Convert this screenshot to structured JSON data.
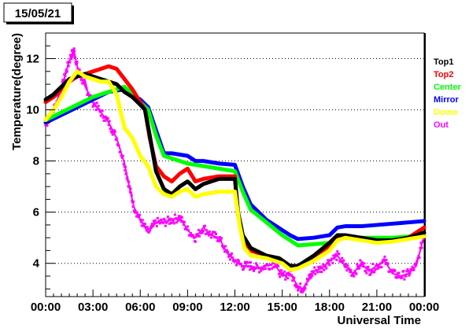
{
  "chart_data": {
    "type": "line",
    "date_label": "15/05/21",
    "ylabel": "Temperature(degree)",
    "xlabel": "Universal Time",
    "xlim": [
      0,
      24
    ],
    "ylim": [
      2.7,
      13.0
    ],
    "x_ticks": [
      0,
      3,
      6,
      9,
      12,
      15,
      18,
      21,
      24
    ],
    "x_tick_labels": [
      "00:00",
      "03:00",
      "06:00",
      "09:00",
      "12:00",
      "15:00",
      "18:00",
      "21:00",
      "00:00"
    ],
    "y_ticks": [
      4,
      6,
      8,
      10,
      12
    ],
    "y_tick_labels": [
      "4",
      "6",
      "8",
      "10",
      "12"
    ],
    "grid": "horizontal-dotted",
    "legend_position": "right",
    "series": [
      {
        "name": "Top1",
        "color": "#000000",
        "x": [
          0,
          0.5,
          1,
          1.5,
          2,
          2.5,
          3,
          3.5,
          4,
          4.5,
          5,
          5.5,
          6,
          6.3,
          6.6,
          7,
          7.5,
          8,
          8.5,
          9,
          9.5,
          10,
          11,
          12,
          12.2,
          12.5,
          13,
          14,
          14.8,
          15.5,
          16,
          17,
          18,
          18.5,
          19,
          20,
          21,
          22,
          23,
          24
        ],
        "y": [
          10.4,
          10.6,
          10.9,
          11.2,
          11.3,
          11.4,
          11.3,
          11.2,
          11.1,
          11.0,
          10.7,
          10.5,
          10.2,
          10.0,
          9.0,
          7.6,
          6.9,
          6.7,
          7.0,
          7.2,
          6.9,
          7.1,
          7.3,
          7.3,
          6.0,
          5.1,
          4.6,
          4.3,
          4.2,
          3.9,
          3.9,
          4.3,
          4.8,
          5.1,
          5.1,
          5.0,
          4.9,
          4.9,
          5.0,
          5.2
        ]
      },
      {
        "name": "Top2",
        "color": "#ff0000",
        "x": [
          0,
          0.5,
          1,
          1.5,
          2,
          2.5,
          3,
          3.5,
          4,
          4.5,
          5,
          5.5,
          6,
          6.3,
          6.6,
          7,
          7.5,
          8,
          8.5,
          9,
          9.5,
          10,
          11,
          12,
          12.2,
          12.5,
          13,
          14,
          14.8,
          15.5,
          16,
          17,
          18,
          18.5,
          19,
          20,
          21,
          22,
          23,
          24
        ],
        "y": [
          10.3,
          10.5,
          10.8,
          11.1,
          11.3,
          11.4,
          11.5,
          11.6,
          11.7,
          11.6,
          11.2,
          10.8,
          10.3,
          10.0,
          8.9,
          7.8,
          7.4,
          7.2,
          7.5,
          7.7,
          7.2,
          7.3,
          7.4,
          7.4,
          5.9,
          5.0,
          4.5,
          4.3,
          4.1,
          3.9,
          3.9,
          4.2,
          4.7,
          5.0,
          5.0,
          5.0,
          4.9,
          4.9,
          5.0,
          5.4
        ]
      },
      {
        "name": "Center",
        "color": "#00ff00",
        "x": [
          0,
          1,
          2,
          3,
          4,
          5,
          6,
          6.5,
          7,
          7.5,
          8,
          9,
          10,
          11,
          12,
          12.5,
          13,
          14,
          15,
          15.5,
          16,
          17,
          18,
          18.5,
          19,
          20,
          21,
          22,
          23,
          24
        ],
        "y": [
          9.6,
          9.9,
          10.2,
          10.5,
          10.7,
          10.9,
          10.3,
          10.0,
          9.0,
          8.2,
          8.1,
          7.9,
          7.8,
          7.7,
          7.6,
          6.8,
          6.1,
          5.6,
          5.1,
          4.9,
          4.7,
          4.75,
          4.8,
          5.05,
          5.05,
          5.0,
          5.0,
          5.0,
          5.05,
          5.1
        ]
      },
      {
        "name": "Mirror",
        "color": "#0000ff",
        "x": [
          0,
          1,
          2,
          3,
          4,
          5,
          6,
          6.5,
          7,
          7.5,
          8,
          9,
          9.5,
          10,
          11,
          12,
          12.5,
          13,
          14,
          15,
          15.5,
          16,
          17,
          18,
          18.5,
          19,
          20,
          21,
          22,
          23,
          24
        ],
        "y": [
          9.5,
          9.8,
          10.1,
          10.4,
          10.7,
          10.8,
          10.4,
          10.1,
          9.2,
          8.3,
          8.3,
          8.2,
          8.0,
          8.0,
          7.9,
          7.85,
          7.0,
          6.3,
          5.7,
          5.3,
          5.1,
          4.95,
          5.0,
          5.1,
          5.4,
          5.45,
          5.45,
          5.5,
          5.55,
          5.6,
          5.65
        ]
      },
      {
        "name": "Dome",
        "color": "#ffff00",
        "x": [
          0,
          0.5,
          1,
          1.5,
          2,
          2.5,
          3,
          3.5,
          4,
          4.5,
          5,
          5.5,
          6,
          6.5,
          7,
          7.5,
          8,
          8.5,
          9,
          9.5,
          10,
          11,
          12,
          12.3,
          12.6,
          13,
          14,
          15,
          15.5,
          16,
          17,
          18,
          18.5,
          19,
          20,
          21,
          22,
          23,
          24
        ],
        "y": [
          9.6,
          10.0,
          10.5,
          11.1,
          11.5,
          11.3,
          11.2,
          11.1,
          11.1,
          10.6,
          9.3,
          8.9,
          8.2,
          7.8,
          7.0,
          6.7,
          6.6,
          6.8,
          6.9,
          6.6,
          6.7,
          6.8,
          6.8,
          5.5,
          4.6,
          4.3,
          4.2,
          4.0,
          3.75,
          3.8,
          4.1,
          4.5,
          4.9,
          5.0,
          4.9,
          4.8,
          4.85,
          4.95,
          5.05
        ]
      },
      {
        "name": "Out",
        "color": "#ff00ff",
        "x": [
          0,
          0.5,
          1,
          1.3,
          1.6,
          1.8,
          2,
          2.3,
          2.6,
          3,
          3.5,
          4,
          4.5,
          5,
          5.3,
          5.6,
          6,
          6.5,
          7,
          7.5,
          8,
          8.5,
          9,
          9.5,
          10,
          10.5,
          11,
          11.5,
          12,
          12.5,
          13,
          13.5,
          14,
          14.5,
          15,
          15.5,
          16,
          16.3,
          16.7,
          17,
          17.5,
          18,
          18.5,
          19,
          19.5,
          20,
          20.5,
          21,
          21.5,
          22,
          22.5,
          23,
          23.5,
          24
        ],
        "y": [
          9.4,
          10.0,
          10.8,
          11.5,
          12.1,
          12.3,
          11.7,
          11.2,
          10.8,
          10.3,
          9.9,
          9.5,
          8.9,
          7.9,
          7.0,
          6.2,
          5.7,
          5.2,
          5.6,
          5.6,
          5.7,
          5.8,
          5.3,
          5.0,
          5.4,
          5.1,
          5.0,
          4.4,
          4.1,
          3.9,
          3.9,
          3.8,
          3.9,
          4.0,
          3.5,
          3.6,
          3.1,
          3.0,
          3.4,
          3.7,
          3.8,
          4.1,
          4.3,
          3.9,
          3.6,
          4.0,
          3.7,
          3.9,
          4.1,
          3.6,
          3.5,
          3.6,
          3.9,
          5.1
        ]
      }
    ]
  }
}
